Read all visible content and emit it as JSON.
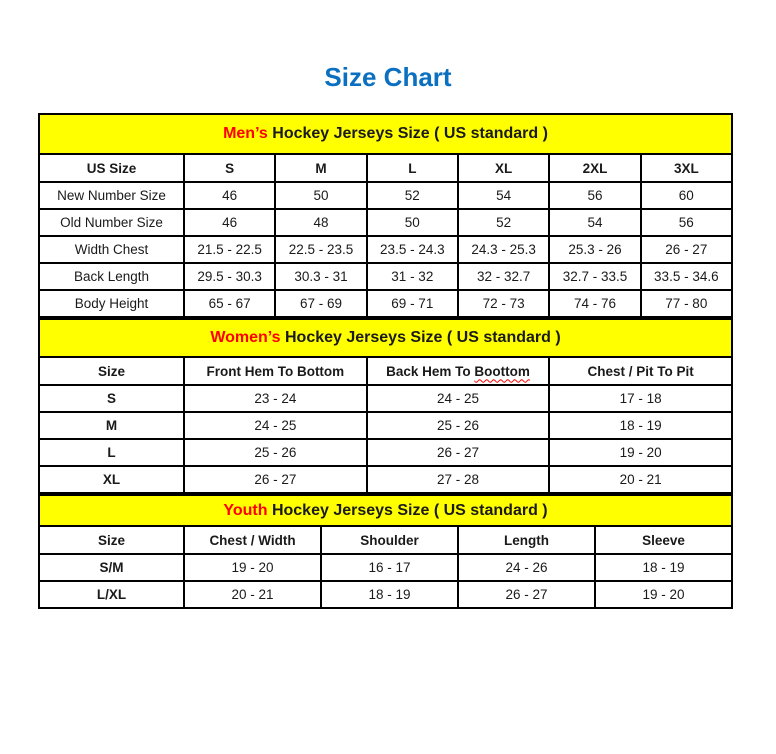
{
  "page": {
    "title": "Size Chart"
  },
  "colors": {
    "title_blue": "#0C70C0",
    "accent_red": "#FF0000",
    "banner_yellow": "#FFFF00",
    "border_black": "#000000"
  },
  "tables": [
    {
      "id": "mens",
      "banner": {
        "highlight": "Men’s",
        "rest": " Hockey Jerseys Size ( US standard )"
      },
      "columns": [
        "US Size",
        "S",
        "M",
        "L",
        "XL",
        "2XL",
        "3XL"
      ],
      "bold_labels": false,
      "rows": [
        {
          "label": "New Number Size",
          "values": [
            "46",
            "50",
            "52",
            "54",
            "56",
            "60"
          ]
        },
        {
          "label": "Old Number Size",
          "values": [
            "46",
            "48",
            "50",
            "52",
            "54",
            "56"
          ]
        },
        {
          "label": "Width Chest",
          "values": [
            "21.5 - 22.5",
            "22.5 - 23.5",
            "23.5 - 24.3",
            "24.3 - 25.3",
            "25.3 - 26",
            "26 - 27"
          ]
        },
        {
          "label": "Back Length",
          "values": [
            "29.5 - 30.3",
            "30.3 - 31",
            "31 - 32",
            "32 - 32.7",
            "32.7 - 33.5",
            "33.5 - 34.6"
          ]
        },
        {
          "label": "Body Height",
          "values": [
            "65 - 67",
            "67 - 69",
            "69 - 71",
            "72 - 73",
            "74 - 76",
            "77 - 80"
          ]
        }
      ]
    },
    {
      "id": "womens",
      "banner": {
        "highlight": "Women’s",
        "rest": " Hockey Jerseys Size ( US standard )"
      },
      "columns": [
        "Size",
        "Front Hem To Bottom",
        "Back Hem To Boottom",
        "Chest / Pit To Pit"
      ],
      "squiggle": {
        "col": 2,
        "word": "Boottom"
      },
      "bold_labels": true,
      "rows": [
        {
          "label": "S",
          "values": [
            "23 - 24",
            "24 - 25",
            "17 - 18"
          ]
        },
        {
          "label": "M",
          "values": [
            "24 - 25",
            "25 - 26",
            "18 - 19"
          ]
        },
        {
          "label": "L",
          "values": [
            "25 - 26",
            "26 - 27",
            "19 - 20"
          ]
        },
        {
          "label": "XL",
          "values": [
            "26 - 27",
            "27 - 28",
            "20 - 21"
          ]
        }
      ]
    },
    {
      "id": "youth",
      "banner": {
        "highlight": "Youth",
        "rest": " Hockey Jerseys Size ( US standard )"
      },
      "columns": [
        "Size",
        "Chest / Width",
        "Shoulder",
        "Length",
        "Sleeve"
      ],
      "bold_labels": true,
      "rows": [
        {
          "label": "S/M",
          "values": [
            "19 - 20",
            "16 - 17",
            "24 - 26",
            "18 - 19"
          ]
        },
        {
          "label": "L/XL",
          "values": [
            "20 - 21",
            "18 - 19",
            "26 - 27",
            "19 - 20"
          ]
        }
      ]
    }
  ]
}
